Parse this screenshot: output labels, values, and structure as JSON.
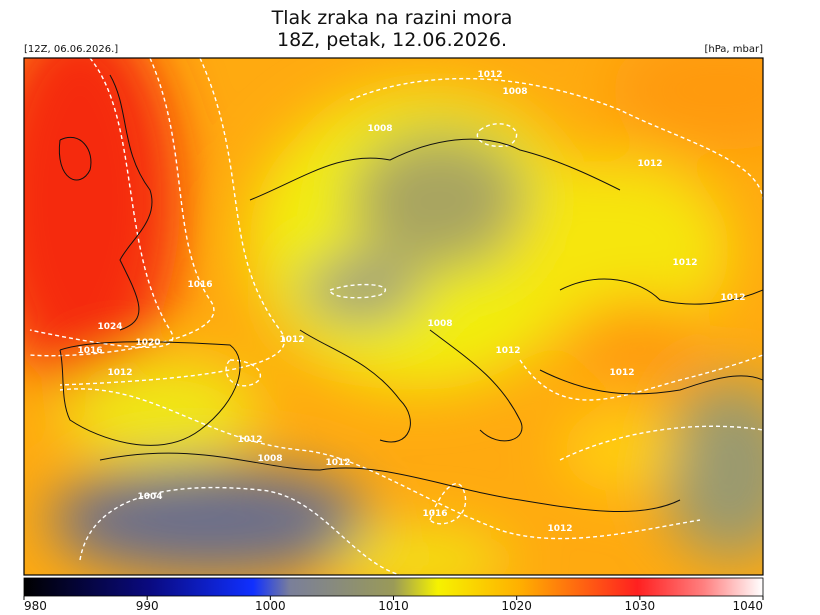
{
  "header": {
    "title_lines": [
      "Tlak zraka na razini mora",
      "18Z, petak, 12.06.2026."
    ],
    "left_label": "[12Z, 06.06.2026.]",
    "right_label": "[hPa, mbar]"
  },
  "isobar_labels": [
    "1012",
    "1008",
    "1008",
    "1012",
    "1016",
    "1012",
    "1012",
    "1024",
    "1020",
    "1016",
    "1012",
    "1008",
    "1012",
    "1012",
    "1012",
    "1012",
    "1008",
    "1012",
    "1004",
    "1016",
    "1012"
  ],
  "colorbar": {
    "range": [
      980,
      1040
    ],
    "ticks": [
      980,
      990,
      1000,
      1010,
      1020,
      1030,
      1040
    ]
  }
}
